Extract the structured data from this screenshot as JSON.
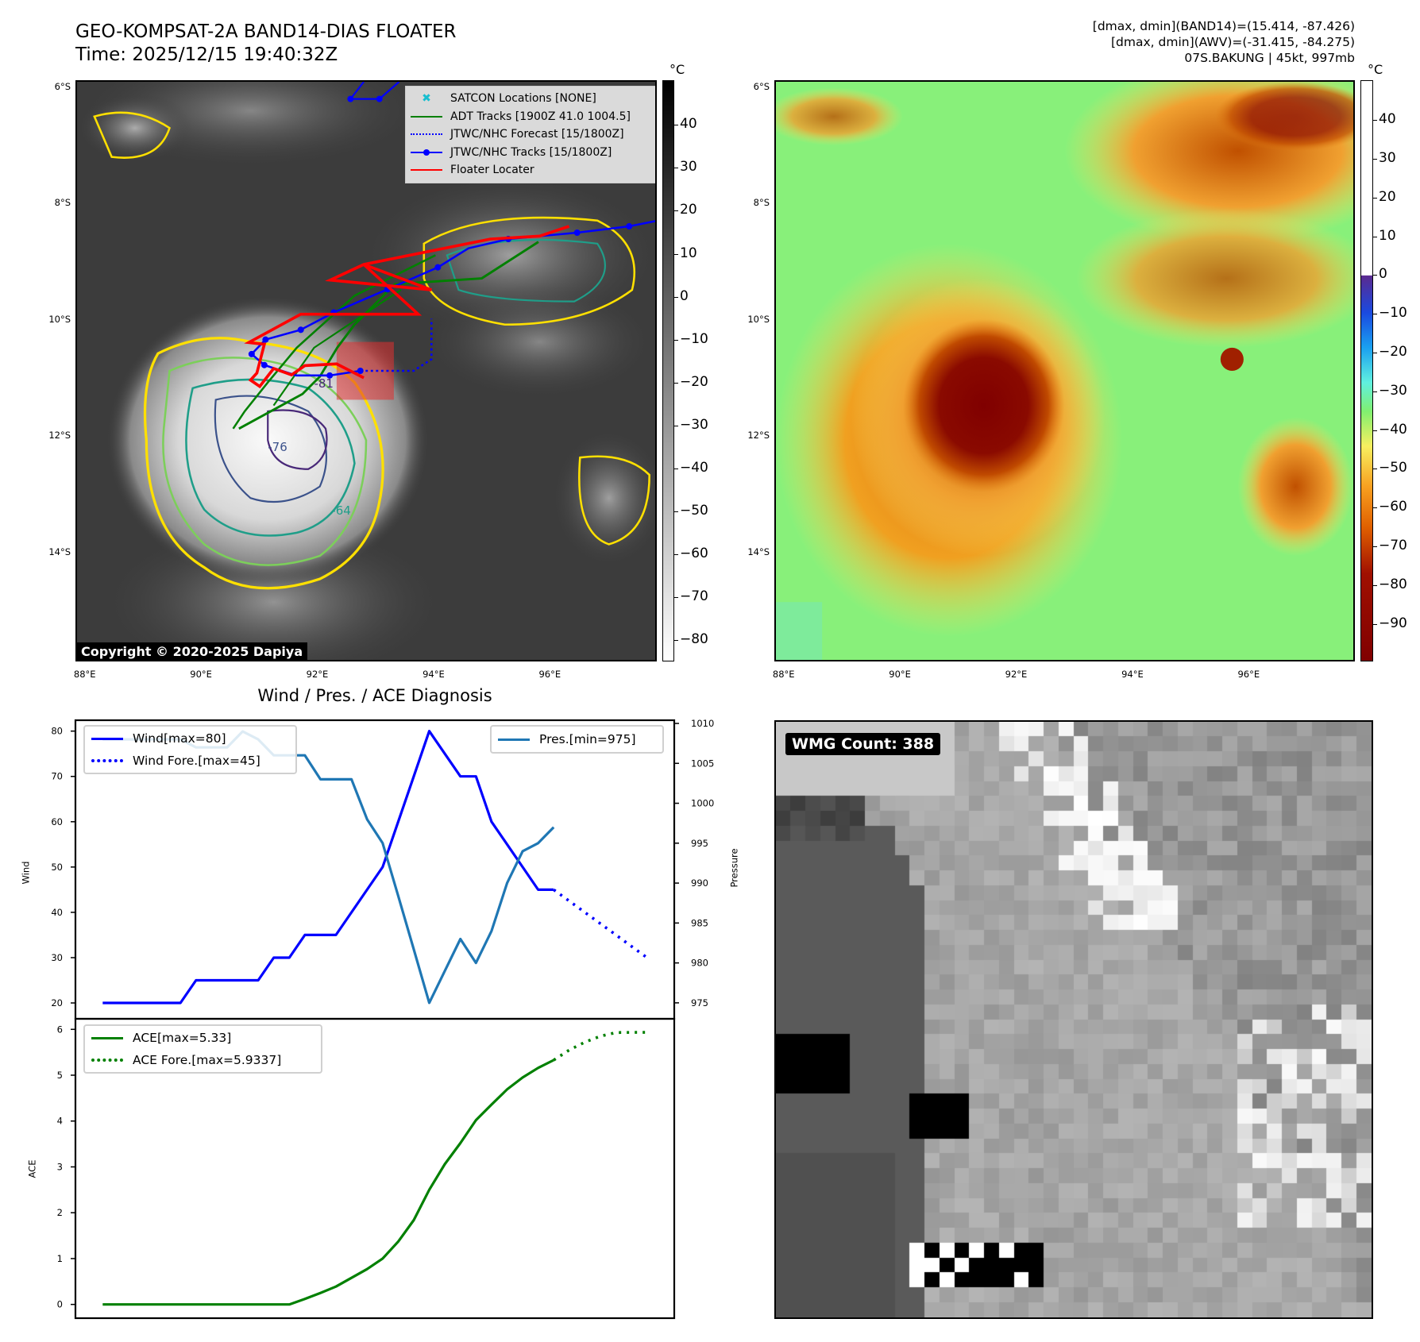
{
  "header": {
    "title": "GEO-KOMPSAT-2A BAND14-DIAS FLOATER",
    "time": "Time: 2025/12/15 19:40:32Z",
    "band14_range": "[dmax, dmin](BAND14)=(15.414, -87.426)",
    "awv_range": "[dmax, dmin](AWV)=(-31.415, -84.275)",
    "storm": "07S.BAKUNG | 45kt, 997mb"
  },
  "maps": {
    "lat_labels": [
      "6°S",
      "8°S",
      "10°S",
      "12°S",
      "14°S"
    ],
    "lon_labels": [
      "88°E",
      "90°E",
      "92°E",
      "94°E",
      "96°E"
    ],
    "contour_labels": [
      "-76",
      "-64",
      "-81"
    ],
    "copyright": "Copyright © 2020-2025 Dapiya",
    "legend": [
      {
        "label": "SATCON Locations [NONE]",
        "color": "#17becf",
        "style": "x"
      },
      {
        "label": "ADT Tracks [1900Z 41.0 1004.5]",
        "color": "#008000",
        "style": "solid"
      },
      {
        "label": "JTWC/NHC Forecast [15/1800Z]",
        "color": "#0000ff",
        "style": "dotted"
      },
      {
        "label": "JTWC/NHC Tracks [15/1800Z]",
        "color": "#0000ff",
        "style": "marker"
      },
      {
        "label": "Floater Locater",
        "color": "#ff0000",
        "style": "solid"
      }
    ],
    "colorbar_left": {
      "unit": "°C",
      "ticks": [
        "40",
        "30",
        "20",
        "10",
        "0",
        "−10",
        "−20",
        "−30",
        "−40",
        "−50",
        "−60",
        "−70",
        "−80"
      ],
      "values": [
        40,
        30,
        20,
        10,
        0,
        -10,
        -20,
        -30,
        -40,
        -50,
        -60,
        -70,
        -80
      ],
      "range": [
        50.4,
        -84.9
      ]
    },
    "colorbar_right": {
      "unit": "°C",
      "ticks": [
        "40",
        "30",
        "20",
        "10",
        "0",
        "−10",
        "−20",
        "−30",
        "−40",
        "−50",
        "−60",
        "−70",
        "−80",
        "−90"
      ],
      "values": [
        40,
        30,
        20,
        10,
        0,
        -10,
        -20,
        -30,
        -40,
        -50,
        -60,
        -70,
        -80,
        -90
      ],
      "range": [
        50.3,
        -99.7
      ]
    }
  },
  "wmg": {
    "label": "WMG Count: 388"
  },
  "chart_data": [
    {
      "type": "line",
      "title": "Wind / Pres. / ACE Diagnosis",
      "ylabel": "Wind",
      "y2label": "Pressure",
      "xlim": [
        -1.75,
        36.75
      ],
      "ylim": [
        16.5,
        82.4
      ],
      "y2lim": [
        973.0,
        1010.4
      ],
      "yticks": [
        20,
        30,
        40,
        50,
        60,
        70,
        80
      ],
      "y2ticks": [
        975,
        980,
        985,
        990,
        995,
        1000,
        1005,
        1010
      ],
      "series": [
        {
          "name": "Wind[max=80]",
          "color": "#0000ff",
          "style": "solid",
          "axis": "left",
          "x0": 0,
          "values": [
            20,
            20,
            20,
            20,
            20,
            20,
            25,
            25,
            25,
            25,
            25,
            30,
            30,
            35,
            35,
            35,
            40,
            45,
            50,
            60,
            70,
            80,
            75,
            70,
            70,
            60,
            55,
            50,
            45,
            45
          ]
        },
        {
          "name": "Wind Fore.[max=45]",
          "color": "#0000ff",
          "style": "dotted",
          "axis": "left",
          "x0": 29,
          "values": [
            45,
            42.5,
            40,
            37.5,
            35,
            32.5,
            30
          ]
        },
        {
          "name": "Pres.[min=975]",
          "color": "#1f77b4",
          "style": "solid",
          "axis": "right",
          "x0": 0,
          "values": [
            1008,
            1008,
            1008,
            1008,
            1008,
            1008,
            1007,
            1007,
            1007,
            1009,
            1008,
            1006,
            1006,
            1006,
            1003,
            1003,
            1003,
            998,
            995,
            988.4,
            981.7,
            975,
            979,
            983,
            980,
            984,
            990,
            994,
            995,
            997
          ]
        }
      ]
    },
    {
      "type": "line",
      "ylabel": "ACE",
      "xlim": [
        -1.75,
        36.75
      ],
      "ylim": [
        -0.3,
        6.23
      ],
      "yticks": [
        0,
        1,
        2,
        3,
        4,
        5,
        6
      ],
      "series": [
        {
          "name": "ACE[max=5.33]",
          "color": "#008000",
          "style": "solid",
          "x0": 0,
          "values": [
            0,
            0,
            0,
            0,
            0,
            0,
            0,
            0,
            0,
            0,
            0,
            0,
            0,
            0.12,
            0.25,
            0.39,
            0.58,
            0.77,
            1.0,
            1.37,
            1.84,
            2.5,
            3.06,
            3.52,
            4.02,
            4.36,
            4.69,
            4.95,
            5.16,
            5.33
          ]
        },
        {
          "name": "ACE Fore.[max=5.9337]",
          "color": "#008000",
          "style": "dotted",
          "x0": 29,
          "values": [
            5.33,
            5.55,
            5.72,
            5.85,
            5.93,
            5.9337,
            5.9337
          ]
        }
      ]
    }
  ]
}
